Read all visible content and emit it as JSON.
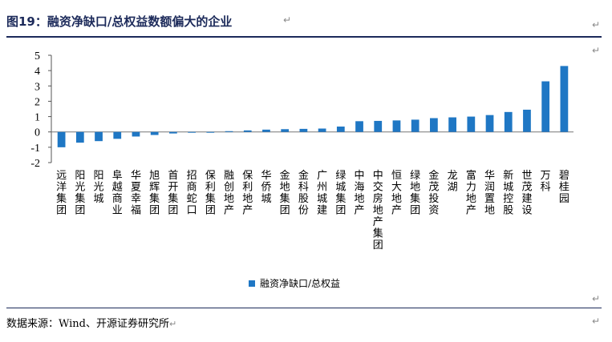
{
  "title": "图19：融资净缺口/总权益数额偏大的企业",
  "source": "数据来源：Wind、开源证券研究所",
  "return_mark": "↵",
  "colors": {
    "bar": "#1f77c4",
    "title": "#1c2a5a",
    "rule": "#1c2a5a"
  },
  "chart_data": {
    "type": "bar",
    "categories": [
      "远洋集团",
      "阳光集团",
      "阳光城",
      "阜越商业",
      "华夏幸福",
      "旭辉集团",
      "首开集团",
      "招商蛇口",
      "保利集团",
      "融创地产",
      "保利地产",
      "华侨城",
      "金地集团",
      "金科股份",
      "广州城建",
      "绿城集团",
      "中海地产",
      "中交房地产集团",
      "恒大地产",
      "绿地集团",
      "金茂投资",
      "龙湖",
      "富力地产",
      "华润置地",
      "新城控股",
      "世茂建设",
      "万科",
      "碧桂园"
    ],
    "series": [
      {
        "name": "融资净缺口/总权益",
        "values": [
          -1.0,
          -0.7,
          -0.6,
          -0.45,
          -0.3,
          -0.2,
          -0.1,
          -0.05,
          -0.05,
          0.05,
          0.1,
          0.15,
          0.18,
          0.2,
          0.22,
          0.35,
          0.7,
          0.72,
          0.75,
          0.8,
          0.9,
          0.95,
          1.0,
          1.1,
          1.3,
          1.45,
          3.3,
          4.3
        ]
      }
    ],
    "ylim": [
      -2,
      5
    ],
    "yticks": [
      -2,
      -1,
      0,
      1,
      2,
      3,
      4,
      5
    ],
    "ytick_labels": [
      "-2",
      "-1",
      "0",
      "1",
      "2",
      "3",
      "4",
      "5"
    ],
    "grid": false,
    "legend": "bottom-center"
  }
}
